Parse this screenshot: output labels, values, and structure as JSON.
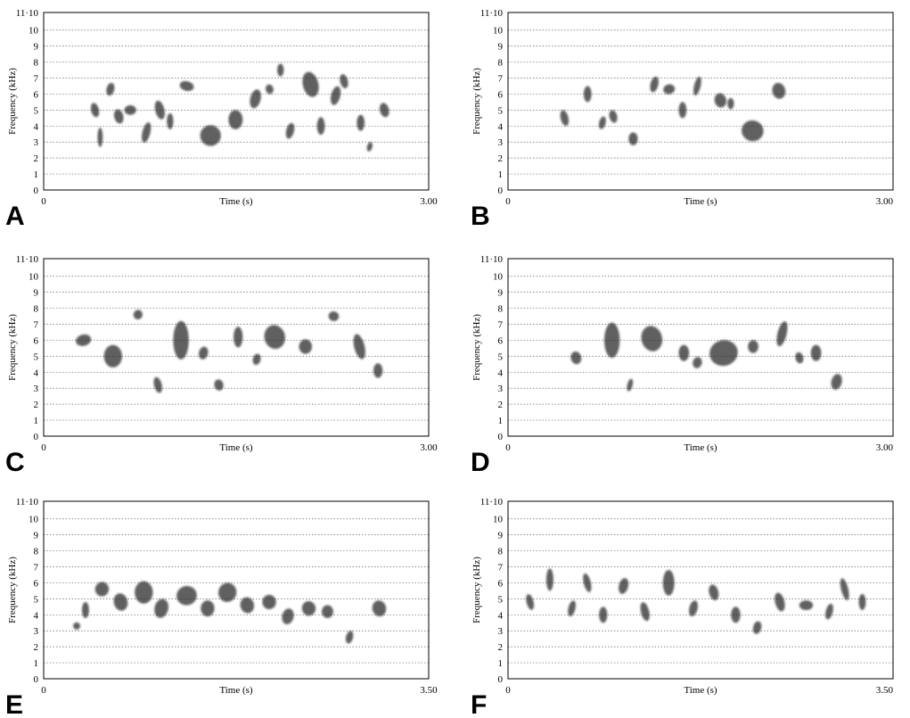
{
  "chart_data": [
    {
      "panel_label": "A",
      "type": "heatmap",
      "chart_kind": "spectrogram",
      "xlabel": "Time (s)",
      "ylabel": "Frequency (kHz)",
      "xlim": [
        0,
        3.0
      ],
      "ylim": [
        0,
        11.1
      ],
      "x_tick_labels": [
        "0",
        "3.00"
      ],
      "y_tick_labels": [
        "0",
        "1",
        "2",
        "3",
        "4",
        "5",
        "6",
        "7",
        "8",
        "9",
        "10",
        "11·10"
      ],
      "grid": "horizontal dotted",
      "syllables": [
        {
          "t": 0.38,
          "f": 5.0,
          "dur": 0.04,
          "bw": 0.9
        },
        {
          "t": 0.43,
          "f": 3.3,
          "dur": 0.02,
          "bw": 1.2
        },
        {
          "t": 0.5,
          "f": 6.3,
          "dur": 0.04,
          "bw": 0.8
        },
        {
          "t": 0.56,
          "f": 4.6,
          "dur": 0.05,
          "bw": 0.9
        },
        {
          "t": 0.64,
          "f": 5.0,
          "dur": 0.07,
          "bw": 0.6
        },
        {
          "t": 0.78,
          "f": 3.6,
          "dur": 0.04,
          "bw": 1.3
        },
        {
          "t": 0.88,
          "f": 5.0,
          "dur": 0.05,
          "bw": 1.2
        },
        {
          "t": 0.97,
          "f": 4.3,
          "dur": 0.03,
          "bw": 1.0
        },
        {
          "t": 1.07,
          "f": 6.5,
          "dur": 0.09,
          "bw": 0.6
        },
        {
          "t": 1.23,
          "f": 3.4,
          "dur": 0.14,
          "bw": 1.3
        },
        {
          "t": 1.45,
          "f": 4.4,
          "dur": 0.09,
          "bw": 1.2
        },
        {
          "t": 1.62,
          "f": 5.7,
          "dur": 0.06,
          "bw": 1.2
        },
        {
          "t": 1.74,
          "f": 6.3,
          "dur": 0.04,
          "bw": 0.6
        },
        {
          "t": 1.83,
          "f": 7.5,
          "dur": 0.03,
          "bw": 0.8
        },
        {
          "t": 1.9,
          "f": 3.7,
          "dur": 0.04,
          "bw": 1.0
        },
        {
          "t": 2.03,
          "f": 6.6,
          "dur": 0.1,
          "bw": 1.6
        },
        {
          "t": 2.14,
          "f": 4.0,
          "dur": 0.04,
          "bw": 1.1
        },
        {
          "t": 2.25,
          "f": 5.9,
          "dur": 0.05,
          "bw": 1.2
        },
        {
          "t": 2.32,
          "f": 6.8,
          "dur": 0.04,
          "bw": 0.9
        },
        {
          "t": 2.45,
          "f": 4.2,
          "dur": 0.04,
          "bw": 1.0
        },
        {
          "t": 2.53,
          "f": 2.7,
          "dur": 0.02,
          "bw": 0.6
        },
        {
          "t": 2.63,
          "f": 5.0,
          "dur": 0.05,
          "bw": 0.9
        }
      ]
    },
    {
      "panel_label": "B",
      "type": "heatmap",
      "chart_kind": "spectrogram",
      "xlabel": "Time (s)",
      "ylabel": "Frequency (kHz)",
      "xlim": [
        0,
        3.0
      ],
      "ylim": [
        0,
        11.1
      ],
      "x_tick_labels": [
        "0",
        "3.00"
      ],
      "y_tick_labels": [
        "0",
        "1",
        "2",
        "3",
        "4",
        "5",
        "6",
        "7",
        "8",
        "9",
        "10",
        "11·10"
      ],
      "grid": "horizontal dotted",
      "syllables": [
        {
          "t": 0.42,
          "f": 4.5,
          "dur": 0.04,
          "bw": 1.0
        },
        {
          "t": 0.6,
          "f": 6.0,
          "dur": 0.04,
          "bw": 1.0
        },
        {
          "t": 0.72,
          "f": 4.2,
          "dur": 0.03,
          "bw": 0.8
        },
        {
          "t": 0.8,
          "f": 4.6,
          "dur": 0.04,
          "bw": 0.8
        },
        {
          "t": 0.95,
          "f": 3.2,
          "dur": 0.05,
          "bw": 0.8
        },
        {
          "t": 1.12,
          "f": 6.6,
          "dur": 0.04,
          "bw": 1.0
        },
        {
          "t": 1.22,
          "f": 6.3,
          "dur": 0.07,
          "bw": 0.6
        },
        {
          "t": 1.34,
          "f": 5.0,
          "dur": 0.04,
          "bw": 1.0
        },
        {
          "t": 1.46,
          "f": 6.5,
          "dur": 0.03,
          "bw": 1.2
        },
        {
          "t": 1.62,
          "f": 5.6,
          "dur": 0.07,
          "bw": 0.9
        },
        {
          "t": 1.72,
          "f": 5.4,
          "dur": 0.03,
          "bw": 0.7
        },
        {
          "t": 1.83,
          "f": 3.7,
          "dur": 0.15,
          "bw": 1.3
        },
        {
          "t": 2.07,
          "f": 6.2,
          "dur": 0.08,
          "bw": 1.0
        }
      ]
    },
    {
      "panel_label": "C",
      "type": "heatmap",
      "chart_kind": "spectrogram",
      "xlabel": "Time (s)",
      "ylabel": "Frequency (kHz)",
      "xlim": [
        0,
        3.0
      ],
      "ylim": [
        0,
        11.1
      ],
      "x_tick_labels": [
        "0",
        "3.00"
      ],
      "y_tick_labels": [
        "0",
        "1",
        "2",
        "3",
        "4",
        "5",
        "6",
        "7",
        "8",
        "9",
        "10",
        "11·10"
      ],
      "grid": "horizontal dotted",
      "syllables": [
        {
          "t": 0.26,
          "f": 6.0,
          "dur": 0.1,
          "bw": 0.7
        },
        {
          "t": 0.48,
          "f": 5.0,
          "dur": 0.12,
          "bw": 1.4
        },
        {
          "t": 0.71,
          "f": 7.6,
          "dur": 0.05,
          "bw": 0.6
        },
        {
          "t": 0.87,
          "f": 3.2,
          "dur": 0.04,
          "bw": 1.0
        },
        {
          "t": 1.02,
          "f": 6.0,
          "dur": 0.1,
          "bw": 2.4
        },
        {
          "t": 1.22,
          "f": 5.2,
          "dur": 0.05,
          "bw": 0.8
        },
        {
          "t": 1.34,
          "f": 3.2,
          "dur": 0.05,
          "bw": 0.7
        },
        {
          "t": 1.49,
          "f": 6.2,
          "dur": 0.05,
          "bw": 1.3
        },
        {
          "t": 1.64,
          "f": 4.8,
          "dur": 0.04,
          "bw": 0.7
        },
        {
          "t": 1.73,
          "f": 6.2,
          "dur": 0.14,
          "bw": 1.5
        },
        {
          "t": 2.0,
          "f": 5.6,
          "dur": 0.08,
          "bw": 0.9
        },
        {
          "t": 2.23,
          "f": 7.5,
          "dur": 0.06,
          "bw": 0.6
        },
        {
          "t": 2.43,
          "f": 5.6,
          "dur": 0.06,
          "bw": 1.6
        },
        {
          "t": 2.58,
          "f": 4.1,
          "dur": 0.05,
          "bw": 0.9
        }
      ]
    },
    {
      "panel_label": "D",
      "type": "heatmap",
      "chart_kind": "spectrogram",
      "xlabel": "Time (s)",
      "ylabel": "Frequency (kHz)",
      "xlim": [
        0,
        3.0
      ],
      "ylim": [
        0,
        11.1
      ],
      "x_tick_labels": [
        "0",
        "3.00"
      ],
      "y_tick_labels": [
        "0",
        "1",
        "2",
        "3",
        "4",
        "5",
        "6",
        "7",
        "8",
        "9",
        "10",
        "11·10"
      ],
      "grid": "horizontal dotted",
      "syllables": [
        {
          "t": 0.5,
          "f": 4.9,
          "dur": 0.06,
          "bw": 0.8
        },
        {
          "t": 0.76,
          "f": 6.0,
          "dur": 0.1,
          "bw": 2.2
        },
        {
          "t": 0.94,
          "f": 3.2,
          "dur": 0.02,
          "bw": 0.8
        },
        {
          "t": 1.05,
          "f": 6.1,
          "dur": 0.14,
          "bw": 1.6
        },
        {
          "t": 1.34,
          "f": 5.2,
          "dur": 0.06,
          "bw": 1.0
        },
        {
          "t": 1.45,
          "f": 4.6,
          "dur": 0.05,
          "bw": 0.7
        },
        {
          "t": 1.58,
          "f": 5.2,
          "dur": 0.2,
          "bw": 1.6
        },
        {
          "t": 1.88,
          "f": 5.6,
          "dur": 0.06,
          "bw": 0.8
        },
        {
          "t": 2.11,
          "f": 6.4,
          "dur": 0.05,
          "bw": 1.6
        },
        {
          "t": 2.25,
          "f": 4.9,
          "dur": 0.04,
          "bw": 0.7
        },
        {
          "t": 2.37,
          "f": 5.2,
          "dur": 0.06,
          "bw": 1.0
        },
        {
          "t": 2.53,
          "f": 3.4,
          "dur": 0.06,
          "bw": 1.0
        }
      ]
    },
    {
      "panel_label": "E",
      "type": "heatmap",
      "chart_kind": "spectrogram",
      "xlabel": "Time (s)",
      "ylabel": "Frequency (kHz)",
      "xlim": [
        0,
        3.5
      ],
      "ylim": [
        0,
        11.1
      ],
      "x_tick_labels": [
        "0",
        "3.50"
      ],
      "y_tick_labels": [
        "0",
        "1",
        "2",
        "3",
        "4",
        "5",
        "6",
        "7",
        "8",
        "9",
        "10",
        "11·10"
      ],
      "grid": "horizontal dotted",
      "syllables": [
        {
          "t": 0.28,
          "f": 3.3,
          "dur": 0.04,
          "bw": 0.4
        },
        {
          "t": 0.36,
          "f": 4.3,
          "dur": 0.04,
          "bw": 1.0
        },
        {
          "t": 0.48,
          "f": 5.6,
          "dur": 0.1,
          "bw": 0.9
        },
        {
          "t": 0.65,
          "f": 4.8,
          "dur": 0.1,
          "bw": 1.1
        },
        {
          "t": 0.84,
          "f": 5.4,
          "dur": 0.14,
          "bw": 1.4
        },
        {
          "t": 1.02,
          "f": 4.4,
          "dur": 0.1,
          "bw": 1.2
        },
        {
          "t": 1.22,
          "f": 5.2,
          "dur": 0.16,
          "bw": 1.2
        },
        {
          "t": 1.44,
          "f": 4.4,
          "dur": 0.1,
          "bw": 1.0
        },
        {
          "t": 1.6,
          "f": 5.4,
          "dur": 0.14,
          "bw": 1.2
        },
        {
          "t": 1.8,
          "f": 4.6,
          "dur": 0.1,
          "bw": 1.0
        },
        {
          "t": 2.0,
          "f": 4.8,
          "dur": 0.1,
          "bw": 0.9
        },
        {
          "t": 2.18,
          "f": 3.9,
          "dur": 0.08,
          "bw": 1.0
        },
        {
          "t": 2.36,
          "f": 4.4,
          "dur": 0.1,
          "bw": 0.9
        },
        {
          "t": 2.54,
          "f": 4.2,
          "dur": 0.08,
          "bw": 0.8
        },
        {
          "t": 2.76,
          "f": 2.6,
          "dur": 0.04,
          "bw": 0.8
        },
        {
          "t": 3.0,
          "f": 4.4,
          "dur": 0.1,
          "bw": 1.0
        }
      ]
    },
    {
      "panel_label": "F",
      "type": "heatmap",
      "chart_kind": "spectrogram",
      "xlabel": "Time (s)",
      "ylabel": "Frequency (kHz)",
      "xlim": [
        0,
        3.5
      ],
      "ylim": [
        0,
        11.1
      ],
      "x_tick_labels": [
        "0",
        "3.50"
      ],
      "y_tick_labels": [
        "0",
        "1",
        "2",
        "3",
        "4",
        "5",
        "6",
        "7",
        "8",
        "9",
        "10",
        "11·10"
      ],
      "grid": "horizontal dotted",
      "syllables": [
        {
          "t": 0.18,
          "f": 4.8,
          "dur": 0.04,
          "bw": 1.0
        },
        {
          "t": 0.36,
          "f": 6.2,
          "dur": 0.04,
          "bw": 1.4
        },
        {
          "t": 0.56,
          "f": 4.4,
          "dur": 0.04,
          "bw": 1.0
        },
        {
          "t": 0.7,
          "f": 6.0,
          "dur": 0.04,
          "bw": 1.2
        },
        {
          "t": 0.84,
          "f": 4.0,
          "dur": 0.05,
          "bw": 1.0
        },
        {
          "t": 1.02,
          "f": 5.8,
          "dur": 0.06,
          "bw": 1.0
        },
        {
          "t": 1.22,
          "f": 4.2,
          "dur": 0.05,
          "bw": 1.2
        },
        {
          "t": 1.42,
          "f": 6.0,
          "dur": 0.08,
          "bw": 1.6
        },
        {
          "t": 1.66,
          "f": 4.4,
          "dur": 0.05,
          "bw": 1.0
        },
        {
          "t": 1.84,
          "f": 5.4,
          "dur": 0.06,
          "bw": 1.0
        },
        {
          "t": 2.04,
          "f": 4.0,
          "dur": 0.06,
          "bw": 1.0
        },
        {
          "t": 2.24,
          "f": 3.2,
          "dur": 0.05,
          "bw": 0.8
        },
        {
          "t": 2.44,
          "f": 4.8,
          "dur": 0.06,
          "bw": 1.2
        },
        {
          "t": 2.66,
          "f": 4.6,
          "dur": 0.1,
          "bw": 0.6
        },
        {
          "t": 2.9,
          "f": 4.2,
          "dur": 0.04,
          "bw": 1.0
        },
        {
          "t": 3.04,
          "f": 5.6,
          "dur": 0.04,
          "bw": 1.4
        },
        {
          "t": 3.2,
          "f": 4.8,
          "dur": 0.04,
          "bw": 1.0
        }
      ]
    }
  ]
}
